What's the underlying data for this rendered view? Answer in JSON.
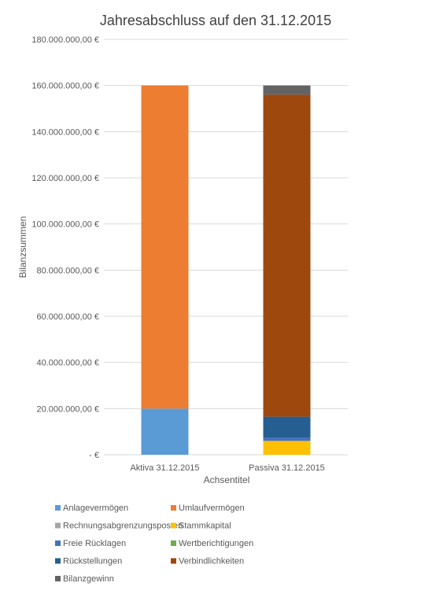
{
  "chart_data": {
    "type": "stacked-bar",
    "title": "Jahresabschluss auf den 31.12.2015",
    "xlabel": "Achsentitel",
    "ylabel": "Bilanzsummen",
    "ylim": [
      0,
      180000000
    ],
    "y_ticks": [
      {
        "value": 0,
        "label": "-   €"
      },
      {
        "value": 20000000,
        "label": "20.000.000,00 €"
      },
      {
        "value": 40000000,
        "label": "40.000.000,00 €"
      },
      {
        "value": 60000000,
        "label": "60.000.000,00 €"
      },
      {
        "value": 80000000,
        "label": "80.000.000,00 €"
      },
      {
        "value": 100000000,
        "label": "100.000.000,00 €"
      },
      {
        "value": 120000000,
        "label": "120.000.000,00 €"
      },
      {
        "value": 140000000,
        "label": "140.000.000,00 €"
      },
      {
        "value": 160000000,
        "label": "160.000.000,00 €"
      },
      {
        "value": 180000000,
        "label": "180.000.000,00 €"
      }
    ],
    "categories": [
      "Aktiva 31.12.2015",
      "Passiva 31.12.2015"
    ],
    "series": [
      {
        "name": "Anlagevermögen",
        "color": "#5B9BD5",
        "values": [
          20000000,
          0
        ]
      },
      {
        "name": "Umlaufvermögen",
        "color": "#ED7D31",
        "values": [
          140000000,
          0
        ]
      },
      {
        "name": "Rechnungsabgrenzungsposten",
        "color": "#A5A5A5",
        "values": [
          0,
          0
        ]
      },
      {
        "name": "Stammkapital",
        "color": "#FFC000",
        "values": [
          0,
          6000000
        ]
      },
      {
        "name": "Freie Rücklagen",
        "color": "#4472C4",
        "values": [
          0,
          1500000
        ]
      },
      {
        "name": "Wertberichtigungen",
        "color": "#70AD47",
        "values": [
          0,
          0
        ]
      },
      {
        "name": "Rückstellungen",
        "color": "#255E91",
        "values": [
          0,
          9000000
        ]
      },
      {
        "name": "Verbindlichkeiten",
        "color": "#9E480E",
        "values": [
          0,
          139500000
        ]
      },
      {
        "name": "Bilanzgewinn",
        "color": "#636363",
        "values": [
          0,
          4000000
        ]
      }
    ],
    "grid": true,
    "legend": "bottom"
  }
}
